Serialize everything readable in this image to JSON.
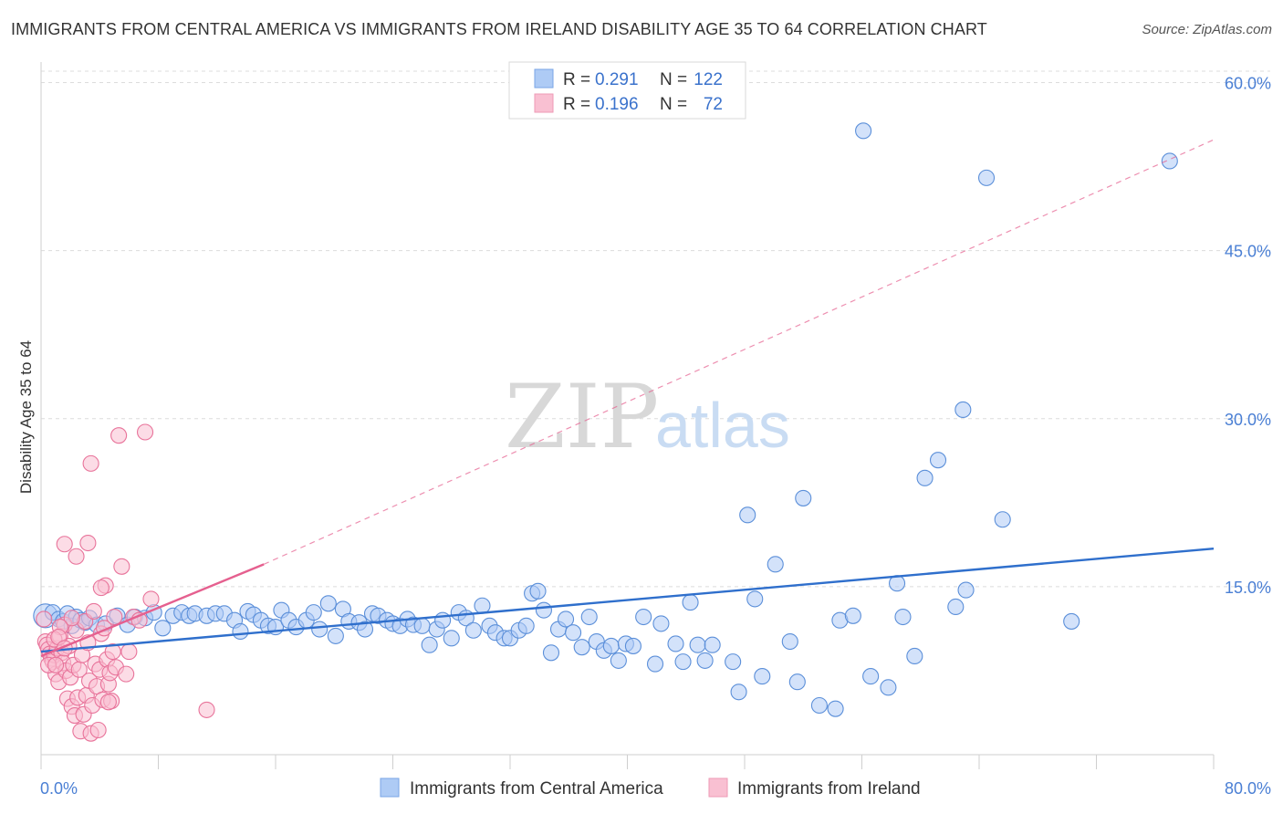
{
  "title": "IMMIGRANTS FROM CENTRAL AMERICA VS IMMIGRANTS FROM IRELAND DISABILITY AGE 35 TO 64 CORRELATION CHART",
  "source": "Source: ZipAtlas.com",
  "watermark": {
    "zip": "ZIP",
    "atlas": "atlas"
  },
  "legend": {
    "r_label": "R =",
    "n_label": "N =",
    "rows": [
      {
        "r": "0.291",
        "n": "122",
        "color": "#aecbf5"
      },
      {
        "r": "0.196",
        "n": "72",
        "color": "#f9c0d2"
      }
    ]
  },
  "chart_data": {
    "type": "scatter",
    "title": "IMMIGRANTS FROM CENTRAL AMERICA VS IMMIGRANTS FROM IRELAND DISABILITY AGE 35 TO 64 CORRELATION CHART",
    "ylabel": "Disability Age 35 to 64",
    "xlabel": "",
    "xlim": [
      0,
      80
    ],
    "ylim": [
      0,
      62
    ],
    "x_tick_labels": [
      "0.0%",
      "80.0%"
    ],
    "y_tick_labels": [
      "15.0%",
      "30.0%",
      "45.0%",
      "60.0%"
    ],
    "y_ticks": [
      15,
      30,
      45,
      60
    ],
    "x_minor_ticks": [
      0,
      8,
      16,
      24,
      32,
      40,
      48,
      56,
      64,
      72,
      80
    ],
    "grid": "horizontal dashed",
    "legend_placement": "top-center",
    "series": [
      {
        "name": "Immigrants from Central America",
        "color": "#5b8fd9",
        "fill": "#aecbf5",
        "trend": {
          "x": [
            0,
            80
          ],
          "y": [
            9.2,
            18.4
          ],
          "style": "solid",
          "color": "#2f6fcc"
        },
        "points": [
          [
            0.3,
            12.4
          ],
          [
            0.8,
            12.7
          ],
          [
            1.2,
            12.1
          ],
          [
            1.5,
            11.9
          ],
          [
            1.8,
            12.6
          ],
          [
            2.1,
            11.5
          ],
          [
            2.4,
            12.3
          ],
          [
            2.7,
            12.0
          ],
          [
            3.0,
            11.8
          ],
          [
            3.3,
            12.2
          ],
          [
            3.8,
            11.6
          ],
          [
            4.4,
            11.7
          ],
          [
            5.2,
            12.4
          ],
          [
            5.9,
            11.6
          ],
          [
            6.4,
            12.3
          ],
          [
            7.1,
            12.2
          ],
          [
            7.7,
            12.7
          ],
          [
            8.3,
            11.3
          ],
          [
            9.0,
            12.4
          ],
          [
            9.6,
            12.7
          ],
          [
            10.1,
            12.4
          ],
          [
            10.5,
            12.6
          ],
          [
            11.3,
            12.4
          ],
          [
            11.9,
            12.6
          ],
          [
            12.5,
            12.6
          ],
          [
            13.2,
            12.0
          ],
          [
            13.6,
            11.0
          ],
          [
            14.1,
            12.8
          ],
          [
            14.5,
            12.5
          ],
          [
            15.0,
            12.0
          ],
          [
            15.5,
            11.5
          ],
          [
            16.0,
            11.4
          ],
          [
            16.4,
            12.9
          ],
          [
            16.9,
            12.0
          ],
          [
            17.4,
            11.4
          ],
          [
            18.1,
            12.0
          ],
          [
            18.6,
            12.7
          ],
          [
            19.0,
            11.2
          ],
          [
            19.6,
            13.5
          ],
          [
            20.1,
            10.6
          ],
          [
            20.6,
            13.0
          ],
          [
            21.0,
            11.9
          ],
          [
            21.7,
            11.8
          ],
          [
            22.1,
            11.2
          ],
          [
            22.6,
            12.6
          ],
          [
            23.0,
            12.4
          ],
          [
            23.6,
            12.0
          ],
          [
            24.0,
            11.7
          ],
          [
            24.5,
            11.5
          ],
          [
            25.0,
            12.1
          ],
          [
            25.4,
            11.6
          ],
          [
            26.0,
            11.5
          ],
          [
            26.5,
            9.8
          ],
          [
            27.0,
            11.2
          ],
          [
            27.4,
            12.0
          ],
          [
            28.0,
            10.4
          ],
          [
            28.5,
            12.7
          ],
          [
            29.0,
            12.2
          ],
          [
            29.5,
            11.1
          ],
          [
            30.1,
            13.3
          ],
          [
            30.6,
            11.5
          ],
          [
            31.0,
            10.9
          ],
          [
            31.6,
            10.4
          ],
          [
            32.0,
            10.4
          ],
          [
            32.6,
            11.1
          ],
          [
            33.1,
            11.5
          ],
          [
            33.5,
            14.4
          ],
          [
            33.9,
            14.6
          ],
          [
            34.3,
            12.9
          ],
          [
            34.8,
            9.1
          ],
          [
            35.3,
            11.2
          ],
          [
            35.8,
            12.1
          ],
          [
            36.3,
            10.9
          ],
          [
            36.9,
            9.6
          ],
          [
            37.4,
            12.3
          ],
          [
            37.9,
            10.1
          ],
          [
            38.4,
            9.3
          ],
          [
            38.9,
            9.7
          ],
          [
            39.4,
            8.4
          ],
          [
            39.9,
            9.9
          ],
          [
            40.4,
            9.7
          ],
          [
            41.1,
            12.3
          ],
          [
            41.9,
            8.1
          ],
          [
            42.3,
            11.7
          ],
          [
            43.3,
            9.9
          ],
          [
            43.8,
            8.3
          ],
          [
            44.3,
            13.6
          ],
          [
            44.8,
            9.8
          ],
          [
            45.3,
            8.4
          ],
          [
            45.8,
            9.8
          ],
          [
            47.2,
            8.3
          ],
          [
            47.6,
            5.6
          ],
          [
            48.2,
            21.4
          ],
          [
            48.7,
            13.9
          ],
          [
            49.2,
            7.0
          ],
          [
            50.1,
            17.0
          ],
          [
            51.1,
            10.1
          ],
          [
            51.6,
            6.5
          ],
          [
            52.0,
            22.9
          ],
          [
            53.1,
            4.4
          ],
          [
            54.2,
            4.1
          ],
          [
            54.5,
            12.0
          ],
          [
            55.4,
            12.4
          ],
          [
            56.1,
            55.7
          ],
          [
            56.6,
            7.0
          ],
          [
            57.8,
            6.0
          ],
          [
            58.4,
            15.3
          ],
          [
            58.8,
            12.3
          ],
          [
            59.6,
            8.8
          ],
          [
            60.3,
            24.7
          ],
          [
            61.2,
            26.3
          ],
          [
            62.4,
            13.2
          ],
          [
            62.9,
            30.8
          ],
          [
            63.1,
            14.7
          ],
          [
            64.5,
            51.5
          ],
          [
            65.6,
            21.0
          ],
          [
            70.3,
            11.9
          ],
          [
            77.0,
            53.0
          ]
        ]
      },
      {
        "name": "Immigrants from Ireland",
        "color": "#e8739a",
        "fill": "#f9c0d2",
        "trend": {
          "x": [
            0,
            15.2
          ],
          "y": [
            8.8,
            17.0
          ],
          "style": "solid",
          "color": "#e5608f",
          "extension": {
            "x": [
              15.2,
              80
            ],
            "y": [
              17.0,
              54.9
            ],
            "style": "dashed"
          }
        },
        "points": [
          [
            0.2,
            12.1
          ],
          [
            0.3,
            10.1
          ],
          [
            0.4,
            9.8
          ],
          [
            0.5,
            9.4
          ],
          [
            0.6,
            9.0
          ],
          [
            0.7,
            8.6
          ],
          [
            0.8,
            8.3
          ],
          [
            0.9,
            8.9
          ],
          [
            1.0,
            7.2
          ],
          [
            1.1,
            9.5
          ],
          [
            1.2,
            6.5
          ],
          [
            1.3,
            10.6
          ],
          [
            1.4,
            9.1
          ],
          [
            1.5,
            8.2
          ],
          [
            1.6,
            11.6
          ],
          [
            1.7,
            7.5
          ],
          [
            1.8,
            5.0
          ],
          [
            1.9,
            9.7
          ],
          [
            2.0,
            6.9
          ],
          [
            2.1,
            4.3
          ],
          [
            2.2,
            8.0
          ],
          [
            2.3,
            3.5
          ],
          [
            2.4,
            11.1
          ],
          [
            2.5,
            5.1
          ],
          [
            2.6,
            7.6
          ],
          [
            2.7,
            2.1
          ],
          [
            2.8,
            8.9
          ],
          [
            2.9,
            3.6
          ],
          [
            3.0,
            11.9
          ],
          [
            3.1,
            5.3
          ],
          [
            3.2,
            10.0
          ],
          [
            3.3,
            6.6
          ],
          [
            3.4,
            1.9
          ],
          [
            3.5,
            4.4
          ],
          [
            3.6,
            12.8
          ],
          [
            3.7,
            8.1
          ],
          [
            3.8,
            6.1
          ],
          [
            3.9,
            2.2
          ],
          [
            4.0,
            7.6
          ],
          [
            4.1,
            10.8
          ],
          [
            4.2,
            4.9
          ],
          [
            4.3,
            11.3
          ],
          [
            4.4,
            15.1
          ],
          [
            4.5,
            8.5
          ],
          [
            4.6,
            6.3
          ],
          [
            4.7,
            7.3
          ],
          [
            4.8,
            4.8
          ],
          [
            4.9,
            9.2
          ],
          [
            5.0,
            12.3
          ],
          [
            5.1,
            7.8
          ],
          [
            5.3,
            28.5
          ],
          [
            5.5,
            16.8
          ],
          [
            5.8,
            7.2
          ],
          [
            6.0,
            9.2
          ],
          [
            6.3,
            12.3
          ],
          [
            6.7,
            12.0
          ],
          [
            7.1,
            28.8
          ],
          [
            7.5,
            13.9
          ],
          [
            1.6,
            18.8
          ],
          [
            3.2,
            18.9
          ],
          [
            2.4,
            17.7
          ],
          [
            3.4,
            26.0
          ],
          [
            4.1,
            14.9
          ],
          [
            2.1,
            12.2
          ],
          [
            1.3,
            11.4
          ],
          [
            0.9,
            10.3
          ],
          [
            0.5,
            8.0
          ],
          [
            1.0,
            8.0
          ],
          [
            1.2,
            10.5
          ],
          [
            1.6,
            9.5
          ],
          [
            11.3,
            4.0
          ],
          [
            4.6,
            4.7
          ]
        ]
      }
    ]
  },
  "bottom_legend": [
    {
      "label": "Immigrants from Central America",
      "color": "#aecbf5"
    },
    {
      "label": "Immigrants from Ireland",
      "color": "#f9c0d2"
    }
  ]
}
